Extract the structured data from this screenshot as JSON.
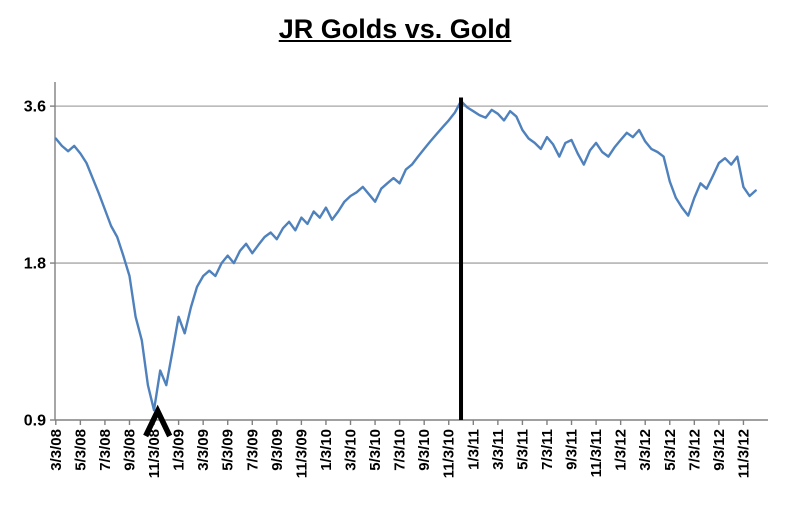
{
  "title": "JR Golds vs. Gold",
  "colors": {
    "line": "#4F81BD",
    "gridline": "#A6A6A6",
    "axis": "#808080",
    "annotation": "#000000",
    "text": "#000000",
    "background": "#FFFFFF"
  },
  "chart_data": {
    "type": "line",
    "title": "JR Golds vs. Gold",
    "legend": "none",
    "x_axis": {
      "tick_interval": "2 months",
      "overhang_months": 2,
      "ticks": [
        "3/3/08",
        "5/3/08",
        "7/3/08",
        "9/3/08",
        "11/3/08",
        "1/3/09",
        "3/3/09",
        "5/3/09",
        "7/3/09",
        "9/3/09",
        "11/3/09",
        "1/3/10",
        "3/3/10",
        "5/3/10",
        "7/3/10",
        "9/3/10",
        "11/3/10",
        "1/3/11",
        "3/3/11",
        "5/3/11",
        "7/3/11",
        "9/3/11",
        "11/3/11",
        "1/3/12",
        "3/3/12",
        "5/3/12",
        "7/3/12",
        "9/3/12",
        "11/3/12"
      ]
    },
    "y_axis": {
      "scale": "log2",
      "min": 0.9,
      "max": 3.9,
      "ticks": [
        "0.9",
        "1.8",
        "3.6"
      ],
      "tick_values": [
        0.9,
        1.8,
        3.6
      ]
    },
    "series": [
      {
        "name": "JR Golds vs. Gold ratio",
        "start_date": "3/3/08",
        "points_per_month": 2,
        "values": [
          3.12,
          3.02,
          2.95,
          3.02,
          2.92,
          2.8,
          2.62,
          2.45,
          2.28,
          2.12,
          2.02,
          1.86,
          1.7,
          1.42,
          1.28,
          1.05,
          0.94,
          1.12,
          1.05,
          1.22,
          1.42,
          1.32,
          1.48,
          1.62,
          1.7,
          1.74,
          1.7,
          1.8,
          1.86,
          1.8,
          1.9,
          1.96,
          1.88,
          1.95,
          2.02,
          2.06,
          2.0,
          2.1,
          2.16,
          2.08,
          2.2,
          2.14,
          2.26,
          2.2,
          2.3,
          2.18,
          2.26,
          2.36,
          2.42,
          2.46,
          2.52,
          2.44,
          2.36,
          2.5,
          2.56,
          2.62,
          2.56,
          2.72,
          2.78,
          2.88,
          2.98,
          3.08,
          3.18,
          3.28,
          3.38,
          3.5,
          3.68,
          3.58,
          3.52,
          3.46,
          3.42,
          3.54,
          3.48,
          3.38,
          3.52,
          3.44,
          3.24,
          3.12,
          3.06,
          2.98,
          3.14,
          3.04,
          2.88,
          3.06,
          3.1,
          2.92,
          2.78,
          2.96,
          3.06,
          2.94,
          2.88,
          3.0,
          3.1,
          3.2,
          3.14,
          3.24,
          3.08,
          2.98,
          2.94,
          2.88,
          2.58,
          2.4,
          2.3,
          2.22,
          2.4,
          2.56,
          2.5,
          2.64,
          2.8,
          2.86,
          2.78,
          2.88,
          2.52,
          2.42,
          2.48
        ]
      }
    ],
    "annotations": {
      "vertical_line": {
        "date": "12/3/10",
        "top_value": 3.74
      },
      "up_arrow": {
        "date": "11/12/08",
        "at_value": 0.94,
        "direction": "up"
      }
    }
  }
}
